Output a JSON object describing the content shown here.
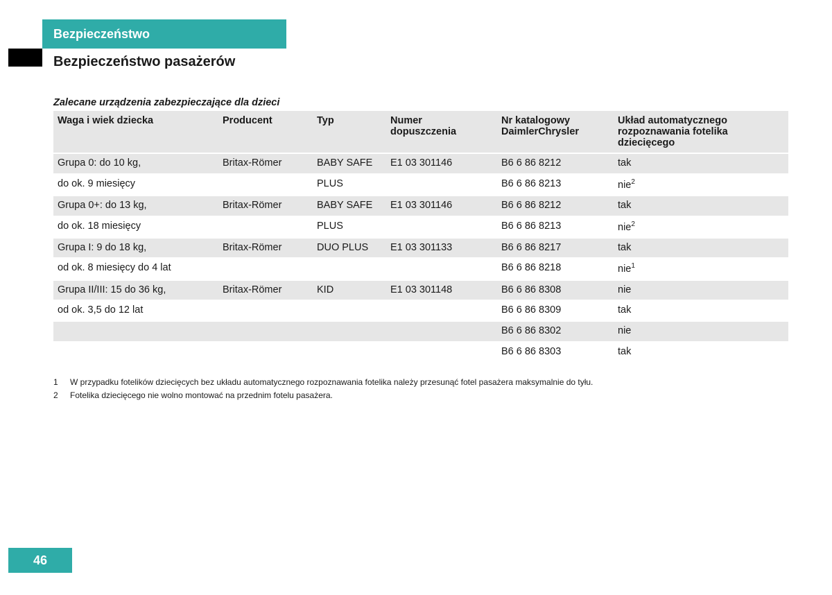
{
  "colors": {
    "accent": "#2faca8",
    "header_bg": "#e6e6e6",
    "page_bg": "#ffffff",
    "text": "#1a1a1a"
  },
  "section_tab": "Bezpieczeństwo",
  "section_title": "Bezpieczeństwo pasażerów",
  "table_caption": "Zalecane urządzenia zabezpieczające dla dzieci",
  "columns": {
    "c0": "Waga i wiek dziecka",
    "c1": "Producent",
    "c2": "Typ",
    "c3": "Numer dopuszczenia",
    "c4": "Nr katalogowy DaimlerChrysler",
    "c5": "Układ automatycznego rozpoznawania fotelika dziecięcego"
  },
  "rows": {
    "g0": {
      "weight_l1": "Grupa 0: do 10 kg,",
      "weight_l2": "do ok. 9 miesięcy",
      "producer": "Britax-Römer",
      "type_l1": "BABY SAFE",
      "type_l2": "PLUS",
      "approval": "E1 03 301146",
      "cat_a": "B6 6 86 8212",
      "cat_b": "B6 6 86 8213",
      "auto_a": "tak",
      "auto_b": "nie",
      "auto_b_sup": "2"
    },
    "g1": {
      "weight_l1": "Grupa 0+: do 13 kg,",
      "weight_l2": "do ok. 18 miesięcy",
      "producer": "Britax-Römer",
      "type_l1": "BABY SAFE",
      "type_l2": "PLUS",
      "approval": "E1 03 301146",
      "cat_a": "B6 6 86 8212",
      "cat_b": "B6 6 86 8213",
      "auto_a": "tak",
      "auto_b": "nie",
      "auto_b_sup": "2"
    },
    "g2": {
      "weight_l1": "Grupa I: 9 do 18 kg,",
      "weight_l2": "od ok. 8 miesięcy do 4 lat",
      "producer": "Britax-Römer",
      "type": "DUO PLUS",
      "approval": "E1 03 301133",
      "cat_a": "B6 6 86 8217",
      "cat_b": "B6 6 86 8218",
      "auto_a": "tak",
      "auto_b": "nie",
      "auto_b_sup": "1"
    },
    "g3": {
      "weight_l1": "Grupa II/III: 15 do 36 kg,",
      "weight_l2": "od ok. 3,5 do 12 lat",
      "producer": "Britax-Römer",
      "type": "KID",
      "approval": "E1 03 301148",
      "cat_a": "B6 6 86 8308",
      "cat_b": "B6 6 86 8309",
      "cat_c": "B6 6 86 8302",
      "cat_d": "B6 6 86 8303",
      "auto_a": "nie",
      "auto_b": "tak",
      "auto_c": "nie",
      "auto_d": "tak"
    }
  },
  "footnotes": {
    "n1": "1",
    "t1": "W przypadku fotelików dziecięcych bez układu automatycznego rozpoznawania fotelika należy przesunąć fotel pasażera maksymalnie do tyłu.",
    "n2": "2",
    "t2": "Fotelika dziecięcego nie wolno montować na przednim fotelu pasażera."
  },
  "page_number": "46"
}
